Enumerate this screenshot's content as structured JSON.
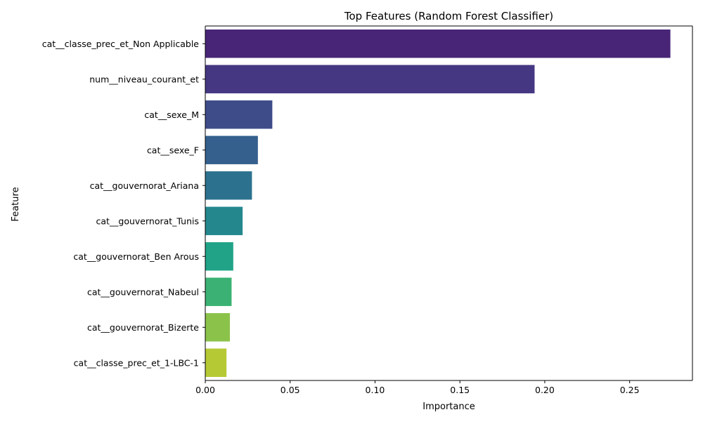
{
  "chart_data": {
    "type": "bar",
    "orientation": "horizontal",
    "title": "Top Features (Random Forest Classifier)",
    "xlabel": "Importance",
    "ylabel": "Feature",
    "xlim": [
      0,
      0.287
    ],
    "xticks": [
      0.0,
      0.05,
      0.1,
      0.15,
      0.2,
      0.25
    ],
    "xtick_labels": [
      "0.00",
      "0.05",
      "0.10",
      "0.15",
      "0.20",
      "0.25"
    ],
    "grid": false,
    "legend": "none",
    "categories": [
      "cat__classe_prec_et_Non Applicable",
      "num__niveau_courant_et",
      "cat__sexe_M",
      "cat__sexe_F",
      "cat__gouvernorat_Ariana",
      "cat__gouvernorat_Tunis",
      "cat__gouvernorat_Ben Arous",
      "cat__gouvernorat_Nabeul",
      "cat__gouvernorat_Bizerte",
      "cat__classe_prec_et_1-LBC-1"
    ],
    "values": [
      0.274,
      0.194,
      0.0395,
      0.031,
      0.0275,
      0.022,
      0.0165,
      0.0155,
      0.0145,
      0.0125
    ],
    "colors": [
      "#482576",
      "#453781",
      "#3e4c8a",
      "#35608d",
      "#2c728e",
      "#24878e",
      "#20a386",
      "#3bb273",
      "#8bc34a",
      "#b5c935"
    ]
  }
}
